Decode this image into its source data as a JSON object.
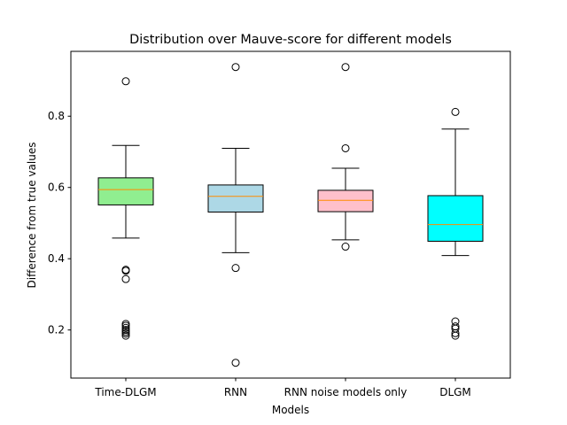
{
  "chart_data": {
    "type": "box",
    "title": "Distribution over Mauve-score for different models",
    "xlabel": "Models",
    "ylabel": "Difference from true values",
    "ylim": [
      0.065,
      0.982
    ],
    "yticks": [
      "0.2",
      "0.4",
      "0.6",
      "0.8"
    ],
    "grid": false,
    "categories": [
      "Time-DLGM",
      "RNN",
      "RNN noise models only",
      "DLGM"
    ],
    "boxes": [
      {
        "category": "Time-DLGM",
        "whislo": 0.458,
        "q1": 0.551,
        "median": 0.594,
        "q3": 0.627,
        "whishi": 0.718,
        "fliers": [
          0.898,
          0.369,
          0.366,
          0.343,
          0.217,
          0.212,
          0.206,
          0.2,
          0.195,
          0.19,
          0.184
        ],
        "color": "#90ee90"
      },
      {
        "category": "RNN",
        "whislo": 0.417,
        "q1": 0.531,
        "median": 0.575,
        "q3": 0.607,
        "whishi": 0.71,
        "fliers": [
          0.938,
          0.374,
          0.108
        ],
        "color": "#add8e6"
      },
      {
        "category": "RNN noise models only",
        "whislo": 0.453,
        "q1": 0.532,
        "median": 0.564,
        "q3": 0.592,
        "whishi": 0.654,
        "fliers": [
          0.938,
          0.71,
          0.434
        ],
        "color": "#ffc0cb"
      },
      {
        "category": "DLGM",
        "whislo": 0.409,
        "q1": 0.449,
        "median": 0.496,
        "q3": 0.577,
        "whishi": 0.764,
        "fliers": [
          0.812,
          0.224,
          0.21,
          0.204,
          0.191,
          0.184
        ],
        "color": "#00ffff"
      }
    ],
    "median_color": "#ff8c00"
  }
}
